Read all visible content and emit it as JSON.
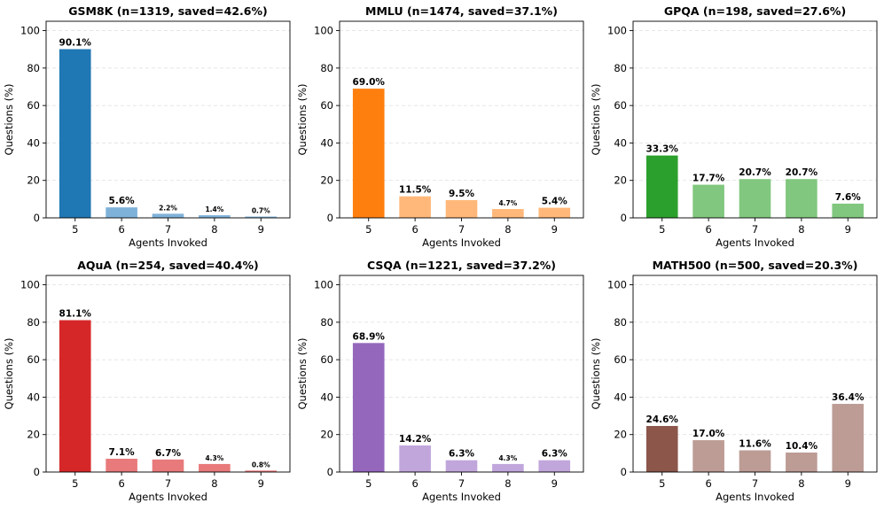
{
  "chart_data": [
    {
      "type": "bar",
      "title": "GSM8K (n=1319, saved=42.6%)",
      "xlabel": "Agents Invoked",
      "ylabel": "Questions (%)",
      "ylim": [
        0,
        105
      ],
      "yticks": [
        "0",
        "20",
        "40",
        "60",
        "80",
        "100"
      ],
      "grid": true,
      "categories": [
        "5",
        "6",
        "7",
        "8",
        "9"
      ],
      "values": [
        90.1,
        5.6,
        2.2,
        1.4,
        0.7
      ],
      "labels": [
        "90.1%",
        "5.6%",
        "2.2%",
        "1.4%",
        "0.7%"
      ],
      "colors": [
        "#1f77b4",
        "#7fb2d9",
        "#7fb2d9",
        "#7fb2d9",
        "#7fb2d9"
      ]
    },
    {
      "type": "bar",
      "title": "MMLU (n=1474, saved=37.1%)",
      "xlabel": "Agents Invoked",
      "ylabel": "Questions (%)",
      "ylim": [
        0,
        105
      ],
      "yticks": [
        "0",
        "20",
        "40",
        "60",
        "80",
        "100"
      ],
      "grid": true,
      "categories": [
        "5",
        "6",
        "7",
        "8",
        "9"
      ],
      "values": [
        69.0,
        11.5,
        9.5,
        4.7,
        5.4
      ],
      "labels": [
        "69.0%",
        "11.5%",
        "9.5%",
        "4.7%",
        "5.4%"
      ],
      "colors": [
        "#ff7f0e",
        "#ffb87a",
        "#ffb87a",
        "#ffb87a",
        "#ffb87a"
      ]
    },
    {
      "type": "bar",
      "title": "GPQA (n=198, saved=27.6%)",
      "xlabel": "Agents Invoked",
      "ylabel": "Questions (%)",
      "ylim": [
        0,
        105
      ],
      "yticks": [
        "0",
        "20",
        "40",
        "60",
        "80",
        "100"
      ],
      "grid": true,
      "categories": [
        "5",
        "6",
        "7",
        "8",
        "9"
      ],
      "values": [
        33.3,
        17.7,
        20.7,
        20.7,
        7.6
      ],
      "labels": [
        "33.3%",
        "17.7%",
        "20.7%",
        "20.7%",
        "7.6%"
      ],
      "colors": [
        "#2ca02c",
        "#81c77f",
        "#81c77f",
        "#81c77f",
        "#81c77f"
      ]
    },
    {
      "type": "bar",
      "title": "AQuA (n=254, saved=40.4%)",
      "xlabel": "Agents Invoked",
      "ylabel": "Questions (%)",
      "ylim": [
        0,
        105
      ],
      "yticks": [
        "0",
        "20",
        "40",
        "60",
        "80",
        "100"
      ],
      "grid": true,
      "categories": [
        "5",
        "6",
        "7",
        "8",
        "9"
      ],
      "values": [
        81.1,
        7.1,
        6.7,
        4.3,
        0.8
      ],
      "labels": [
        "81.1%",
        "7.1%",
        "6.7%",
        "4.3%",
        "0.8%"
      ],
      "colors": [
        "#d62728",
        "#e87a7b",
        "#e87a7b",
        "#e87a7b",
        "#e87a7b"
      ]
    },
    {
      "type": "bar",
      "title": "CSQA (n=1221, saved=37.2%)",
      "xlabel": "Agents Invoked",
      "ylabel": "Questions (%)",
      "ylim": [
        0,
        105
      ],
      "yticks": [
        "0",
        "20",
        "40",
        "60",
        "80",
        "100"
      ],
      "grid": true,
      "categories": [
        "5",
        "6",
        "7",
        "8",
        "9"
      ],
      "values": [
        68.9,
        14.2,
        6.3,
        4.3,
        6.3
      ],
      "labels": [
        "68.9%",
        "14.2%",
        "6.3%",
        "4.3%",
        "6.3%"
      ],
      "colors": [
        "#9467bd",
        "#c1a6dc",
        "#c1a6dc",
        "#c1a6dc",
        "#c1a6dc"
      ]
    },
    {
      "type": "bar",
      "title": "MATH500 (n=500, saved=20.3%)",
      "xlabel": "Agents Invoked",
      "ylabel": "Questions (%)",
      "ylim": [
        0,
        105
      ],
      "yticks": [
        "0",
        "20",
        "40",
        "60",
        "80",
        "100"
      ],
      "grid": true,
      "categories": [
        "5",
        "6",
        "7",
        "8",
        "9"
      ],
      "values": [
        24.6,
        17.0,
        11.6,
        10.4,
        36.4
      ],
      "labels": [
        "24.6%",
        "17.0%",
        "11.6%",
        "10.4%",
        "36.4%"
      ],
      "colors": [
        "#8c564b",
        "#bc9c95",
        "#bc9c95",
        "#bc9c95",
        "#bc9c95"
      ]
    }
  ]
}
